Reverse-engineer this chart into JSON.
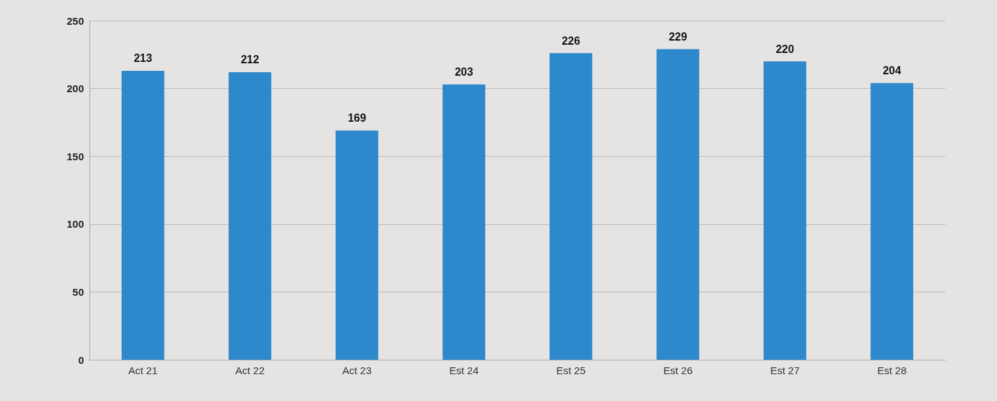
{
  "chart_data": {
    "type": "bar",
    "categories": [
      "Act 21",
      "Act 22",
      "Act 23",
      "Est 24",
      "Est 25",
      "Est 26",
      "Est 27",
      "Est 28"
    ],
    "values": [
      213,
      212,
      169,
      203,
      226,
      229,
      220,
      204
    ],
    "color": "#2e88cc",
    "ylim": [
      0,
      250
    ],
    "yticks": [
      0,
      50,
      100,
      150,
      200,
      250
    ],
    "grid": "y",
    "data_labels": true
  }
}
